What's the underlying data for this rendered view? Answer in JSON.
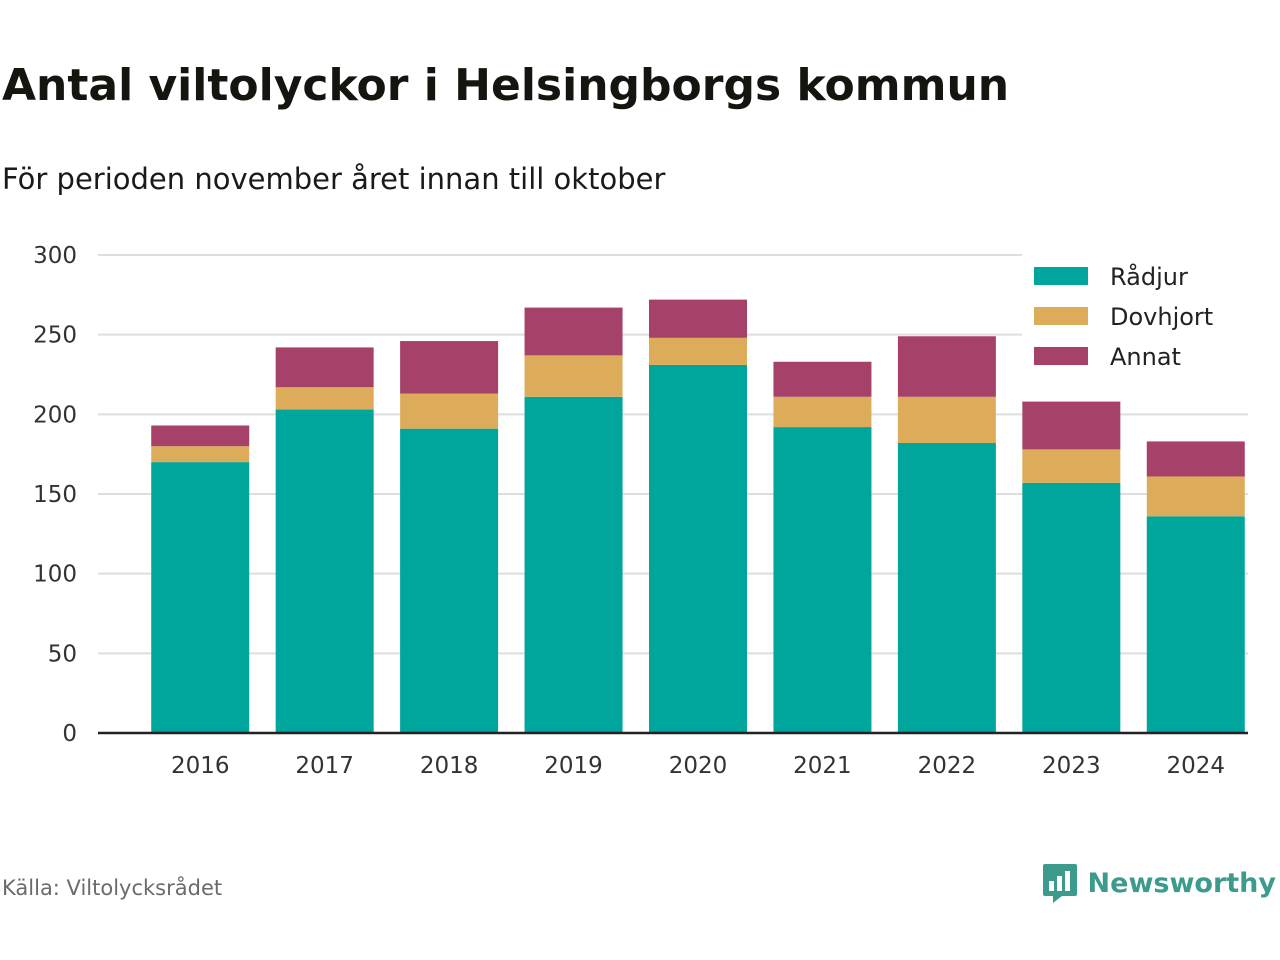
{
  "title": "Antal viltolyckor i Helsingborgs kommun",
  "subtitle": "För perioden november året innan till oktober",
  "source": "Källa: Viltolycksrådet",
  "brand": {
    "name": "Newsworthy",
    "icon": "newsworthy-logo-icon",
    "color": "#3d9b8e"
  },
  "chart_data": {
    "type": "bar",
    "stacked": true,
    "categories": [
      "2016",
      "2017",
      "2018",
      "2019",
      "2020",
      "2021",
      "2022",
      "2023",
      "2024"
    ],
    "series": [
      {
        "name": "Rådjur",
        "color": "#00a59b",
        "values": [
          170,
          203,
          191,
          211,
          231,
          192,
          182,
          157,
          136
        ]
      },
      {
        "name": "Dovhjort",
        "color": "#ddac5a",
        "values": [
          10,
          14,
          22,
          26,
          17,
          19,
          29,
          21,
          25
        ]
      },
      {
        "name": "Annat",
        "color": "#a64269",
        "values": [
          13,
          25,
          33,
          30,
          24,
          22,
          38,
          30,
          22
        ]
      }
    ],
    "ylim": [
      0,
      300
    ],
    "yticks": [
      "0",
      "50",
      "100",
      "150",
      "200",
      "250",
      "300"
    ],
    "grid": true,
    "legend_position": "top-right",
    "title": "Antal viltolyckor i Helsingborgs kommun",
    "xlabel": "",
    "ylabel": ""
  }
}
